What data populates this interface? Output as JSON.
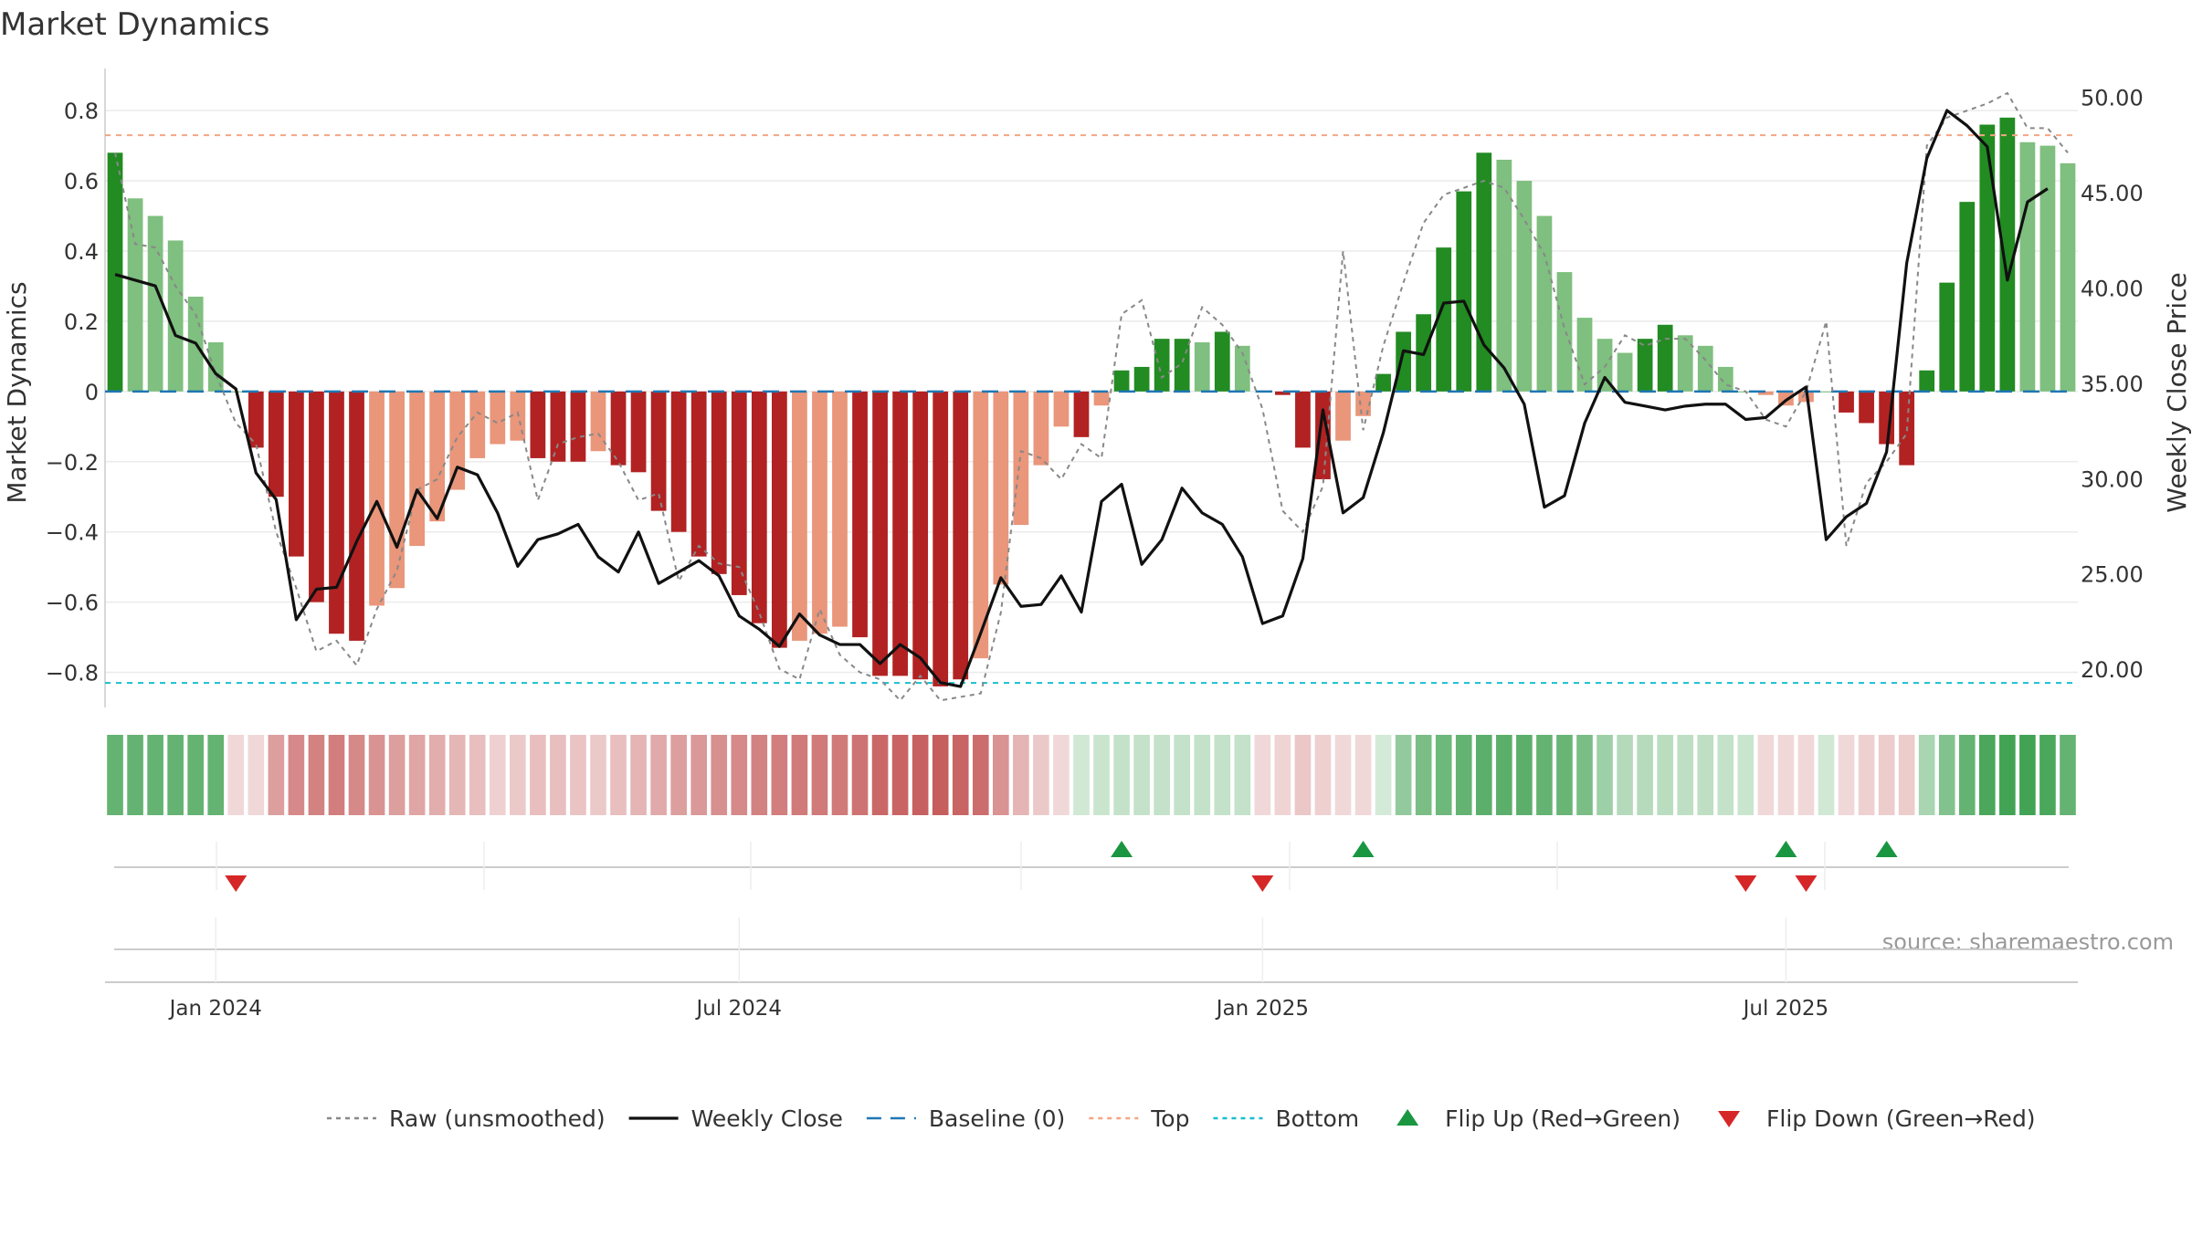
{
  "chart_data": {
    "type": "bar",
    "title": "Market Dynamics",
    "ylabel_left": "Market Dynamics",
    "ylabel_right": "Weekly Close Price",
    "ylim_left": [
      -0.9,
      0.92
    ],
    "ylim_right": [
      18,
      51.5
    ],
    "left_ticks": [
      "0.8",
      "0.6",
      "0.4",
      "0.2",
      "0",
      "−0.2",
      "−0.4",
      "−0.6",
      "−0.8"
    ],
    "left_tick_values": [
      0.8,
      0.6,
      0.4,
      0.2,
      0,
      -0.2,
      -0.4,
      -0.6,
      -0.8
    ],
    "right_ticks": [
      "50.00",
      "45.00",
      "40.00",
      "35.00",
      "30.00",
      "25.00",
      "20.00"
    ],
    "right_tick_values": [
      50,
      45,
      40,
      35,
      30,
      25,
      20
    ],
    "x_ticks": [
      "Jan 2024",
      "Jul 2024",
      "Jan 2025",
      "Jul 2025"
    ],
    "x_tick_weeks": [
      5,
      31,
      57,
      83
    ],
    "top_level": 0.73,
    "bottom_level": -0.83,
    "grid": true,
    "legend_position": "bottom",
    "source_text": "source: sharemaestro.com",
    "legend": [
      {
        "label": "Raw (unsmoothed)",
        "kind": "dotted",
        "color": "#888888"
      },
      {
        "label": "Weekly Close",
        "kind": "solid",
        "color": "#111111"
      },
      {
        "label": "Baseline (0)",
        "kind": "dashed",
        "color": "#1f77b4"
      },
      {
        "label": "Top",
        "kind": "dotted",
        "color": "#f4a582"
      },
      {
        "label": "Bottom",
        "kind": "dotted",
        "color": "#17becf"
      },
      {
        "label": "Flip Up (Red→Green)",
        "kind": "up",
        "color": "#1a9641"
      },
      {
        "label": "Flip Down (Green→Red)",
        "kind": "down",
        "color": "#d62728"
      }
    ],
    "colors": {
      "strong_pos": "#228b22",
      "weak_pos": "#7fbf7f",
      "strong_neg": "#b22222",
      "weak_neg": "#e9967a",
      "close_line": "#111111",
      "raw_line": "#888888",
      "baseline": "#1f77b4",
      "top": "#f4a582",
      "bottom": "#17becf",
      "flip_up": "#1a9641",
      "flip_down": "#d62728"
    },
    "series": [
      {
        "name": "Market Dynamics",
        "values": [
          0.68,
          0.55,
          0.5,
          0.43,
          0.27,
          0.14,
          0.0,
          -0.16,
          -0.3,
          -0.47,
          -0.6,
          -0.69,
          -0.71,
          -0.61,
          -0.56,
          -0.44,
          -0.37,
          -0.28,
          -0.19,
          -0.15,
          -0.14,
          -0.19,
          -0.2,
          -0.2,
          -0.17,
          -0.21,
          -0.23,
          -0.34,
          -0.4,
          -0.47,
          -0.52,
          -0.58,
          -0.66,
          -0.73,
          -0.71,
          -0.69,
          -0.67,
          -0.7,
          -0.81,
          -0.81,
          -0.82,
          -0.84,
          -0.82,
          -0.76,
          -0.55,
          -0.38,
          -0.21,
          -0.1,
          -0.13,
          -0.04,
          0.06,
          0.07,
          0.15,
          0.15,
          0.14,
          0.17,
          0.13,
          0.0,
          -0.01,
          -0.16,
          -0.25,
          -0.14,
          -0.07,
          0.05,
          0.17,
          0.22,
          0.41,
          0.57,
          0.68,
          0.66,
          0.6,
          0.5,
          0.34,
          0.21,
          0.15,
          0.11,
          0.15,
          0.19,
          0.16,
          0.13,
          0.07,
          0.0,
          -0.01,
          -0.04,
          -0.03,
          0.0,
          -0.06,
          -0.09,
          -0.15,
          -0.21,
          0.06,
          0.31,
          0.54,
          0.76,
          0.78,
          0.71,
          0.7,
          0.65
        ],
        "strength": [
          "s",
          "w",
          "w",
          "w",
          "w",
          "w",
          "w",
          "s",
          "s",
          "s",
          "s",
          "s",
          "s",
          "w",
          "w",
          "w",
          "w",
          "w",
          "w",
          "w",
          "w",
          "s",
          "s",
          "s",
          "w",
          "s",
          "s",
          "s",
          "s",
          "s",
          "s",
          "s",
          "s",
          "s",
          "w",
          "w",
          "w",
          "s",
          "s",
          "s",
          "s",
          "s",
          "s",
          "w",
          "w",
          "w",
          "w",
          "w",
          "s",
          "w",
          "s",
          "s",
          "s",
          "s",
          "w",
          "s",
          "w",
          "w",
          "s",
          "s",
          "s",
          "w",
          "w",
          "s",
          "s",
          "s",
          "s",
          "s",
          "s",
          "w",
          "w",
          "w",
          "w",
          "w",
          "w",
          "w",
          "s",
          "s",
          "w",
          "w",
          "w",
          "w",
          "w",
          "w",
          "w",
          "w",
          "s",
          "s",
          "s",
          "s",
          "s",
          "s",
          "s",
          "s",
          "s",
          "w",
          "w",
          "w"
        ]
      },
      {
        "name": "Raw (unsmoothed)",
        "values": [
          0.68,
          0.42,
          0.41,
          0.3,
          0.22,
          0.05,
          -0.09,
          -0.15,
          -0.4,
          -0.56,
          -0.74,
          -0.71,
          -0.78,
          -0.62,
          -0.51,
          -0.28,
          -0.25,
          -0.13,
          -0.06,
          -0.09,
          -0.06,
          -0.31,
          -0.15,
          -0.13,
          -0.12,
          -0.2,
          -0.31,
          -0.29,
          -0.54,
          -0.44,
          -0.49,
          -0.5,
          -0.63,
          -0.79,
          -0.82,
          -0.62,
          -0.75,
          -0.8,
          -0.82,
          -0.88,
          -0.81,
          -0.88,
          -0.87,
          -0.86,
          -0.63,
          -0.17,
          -0.19,
          -0.25,
          -0.15,
          -0.19,
          0.22,
          0.26,
          0.04,
          0.08,
          0.24,
          0.19,
          0.11,
          -0.05,
          -0.34,
          -0.4,
          -0.27,
          0.4,
          -0.11,
          0.13,
          0.31,
          0.48,
          0.56,
          0.58,
          0.6,
          0.58,
          0.49,
          0.39,
          0.18,
          0.02,
          0.07,
          0.16,
          0.13,
          0.15,
          0.15,
          0.09,
          0.02,
          0.0,
          -0.08,
          -0.1,
          0.0,
          0.2,
          -0.44,
          -0.26,
          -0.2,
          -0.12,
          0.7,
          0.78,
          0.8,
          0.82,
          0.85,
          0.75,
          0.75,
          0.68
        ]
      },
      {
        "name": "Weekly Close",
        "values": [
          40.7,
          40.4,
          40.1,
          37.5,
          37.1,
          35.5,
          34.7,
          30.3,
          28.9,
          22.6,
          24.2,
          24.3,
          26.7,
          28.8,
          26.4,
          29.4,
          27.9,
          30.6,
          30.2,
          28.2,
          25.4,
          26.8,
          27.1,
          27.6,
          25.9,
          25.1,
          27.2,
          24.5,
          25.1,
          25.7,
          24.9,
          22.8,
          22.1,
          21.2,
          22.9,
          21.8,
          21.3,
          21.3,
          20.3,
          21.3,
          20.6,
          19.3,
          19.1,
          21.9,
          24.8,
          23.3,
          23.4,
          24.9,
          23.0,
          28.8,
          29.7,
          25.5,
          26.8,
          29.5,
          28.2,
          27.6,
          25.9,
          22.4,
          22.8,
          25.8,
          33.6,
          28.2,
          29.0,
          32.4,
          36.7,
          36.5,
          39.2,
          39.3,
          37.0,
          35.8,
          33.9,
          28.5,
          29.1,
          32.9,
          35.3,
          34.0,
          33.8,
          33.6,
          33.8,
          33.9,
          33.9,
          33.1,
          33.2,
          34.1,
          34.8,
          26.8,
          28.0,
          28.7,
          31.4,
          41.3,
          46.8,
          49.3,
          48.5,
          47.4,
          40.4,
          44.5,
          45.2
        ]
      }
    ],
    "regime_strip": [
      0.72,
      0.72,
      0.72,
      0.72,
      0.72,
      0.72,
      -0.08,
      -0.1,
      -0.45,
      -0.55,
      -0.58,
      -0.6,
      -0.55,
      -0.5,
      -0.45,
      -0.42,
      -0.38,
      -0.34,
      -0.3,
      -0.22,
      -0.25,
      -0.3,
      -0.3,
      -0.28,
      -0.25,
      -0.3,
      -0.35,
      -0.4,
      -0.45,
      -0.48,
      -0.52,
      -0.55,
      -0.58,
      -0.6,
      -0.62,
      -0.62,
      -0.62,
      -0.65,
      -0.7,
      -0.72,
      -0.74,
      -0.75,
      -0.72,
      -0.68,
      -0.5,
      -0.35,
      -0.25,
      -0.12,
      0.22,
      0.25,
      0.28,
      0.28,
      0.28,
      0.28,
      0.28,
      0.28,
      0.28,
      -0.15,
      -0.2,
      -0.26,
      -0.22,
      -0.18,
      -0.16,
      0.2,
      0.5,
      0.62,
      0.68,
      0.72,
      0.76,
      0.76,
      0.76,
      0.72,
      0.7,
      0.62,
      0.45,
      0.35,
      0.34,
      0.32,
      0.3,
      0.3,
      0.28,
      0.25,
      -0.15,
      -0.16,
      -0.15,
      0.22,
      -0.18,
      -0.22,
      -0.24,
      -0.24,
      0.4,
      0.58,
      0.72,
      0.84,
      0.88,
      0.88,
      0.84,
      0.72
    ],
    "flip_up_weeks": [
      50,
      62,
      83,
      88
    ],
    "flip_down_weeks": [
      6,
      57,
      81,
      84
    ]
  }
}
